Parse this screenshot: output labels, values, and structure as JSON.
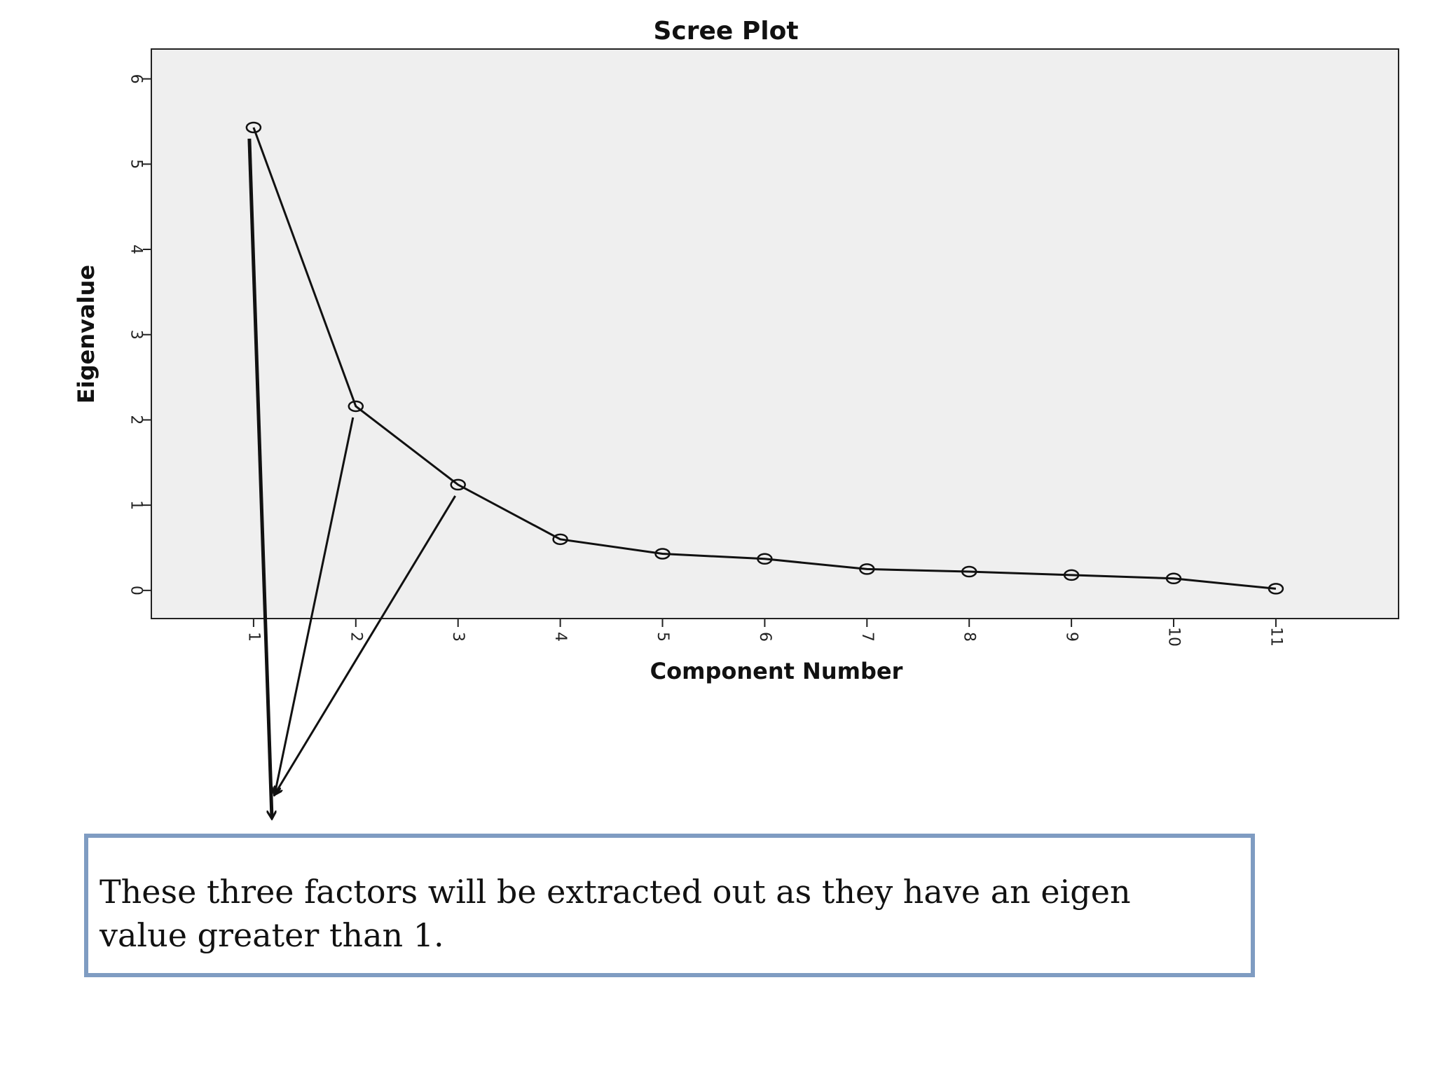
{
  "chart_data": {
    "type": "line",
    "title": "Scree Plot",
    "xlabel": "Component Number",
    "ylabel": "Eigenvalue",
    "x": [
      1,
      2,
      3,
      4,
      5,
      6,
      7,
      8,
      9,
      10,
      11
    ],
    "x_ticks": [
      "1",
      "2",
      "3",
      "4",
      "5",
      "6",
      "7",
      "8",
      "9",
      "10",
      "11"
    ],
    "y_ticks": [
      "0",
      "1",
      "2",
      "3",
      "4",
      "5",
      "6"
    ],
    "series": [
      {
        "values": [
          5.43,
          2.16,
          1.24,
          0.6,
          0.43,
          0.37,
          0.25,
          0.22,
          0.18,
          0.14,
          0.02
        ]
      }
    ],
    "xlim": [
      0,
      12.2
    ],
    "ylim": [
      -0.33,
      6.35
    ],
    "grid": false,
    "marker": "open-circle",
    "plot_background": "#efefef",
    "line_color": "#111111"
  },
  "annotation": {
    "text": "These three factors will be extracted out as they have an eigen value greater than 1.",
    "arrow_sources": [
      1,
      2,
      3
    ],
    "border_color": "#7f9cc2"
  }
}
